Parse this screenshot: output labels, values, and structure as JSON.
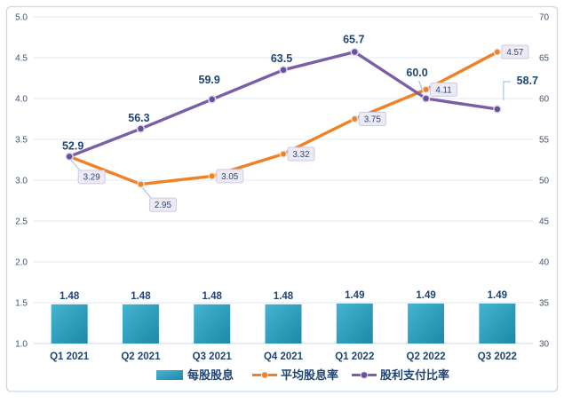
{
  "figure": {
    "background": "#ffffff",
    "border_color": "#c5d9ec"
  },
  "chart_data": {
    "type": "combo-bar-line",
    "title": "",
    "categories": [
      "Q1 2021",
      "Q2 2021",
      "Q3 2021",
      "Q4 2021",
      "Q1 2022",
      "Q2 2022",
      "Q3 2022"
    ],
    "series": [
      {
        "name": "每股股息",
        "type": "bar",
        "axis": "left",
        "color": "#2ba3c4",
        "color_light": "#46b3d1",
        "color_dark": "#1d89a9",
        "values": [
          1.48,
          1.48,
          1.48,
          1.48,
          1.49,
          1.49,
          1.49
        ],
        "labels": [
          "1.48",
          "1.48",
          "1.48",
          "1.48",
          "1.49",
          "1.49",
          "1.49"
        ],
        "label_style": "bold"
      },
      {
        "name": "平均股息率",
        "type": "line",
        "axis": "left",
        "color": "#f08124",
        "values": [
          3.29,
          2.95,
          3.05,
          3.32,
          3.75,
          4.11,
          4.57
        ],
        "labels": [
          "3.29",
          "2.95",
          "3.05",
          "3.32",
          "3.75",
          "4.11",
          "4.57"
        ],
        "label_style": "boxed",
        "label_placement": [
          "callout-below",
          "callout-below",
          "right",
          "right",
          "right",
          "right",
          "right"
        ]
      },
      {
        "name": "股利支付比率",
        "type": "line",
        "axis": "right",
        "color": "#7a5fa6",
        "marker_fill": "#6a4fa0",
        "values": [
          52.9,
          56.3,
          59.9,
          63.5,
          65.7,
          60.0,
          58.7
        ],
        "labels": [
          "52.9",
          "56.3",
          "59.9",
          "63.5",
          "65.7",
          "60.0",
          "58.7"
        ],
        "label_style": "bold",
        "label_placement": [
          "above",
          "above",
          "above",
          "above",
          "above",
          "callout-above-left",
          "callout-right"
        ]
      }
    ],
    "left_axis": {
      "min": 1.0,
      "max": 5.0,
      "step": 0.5,
      "ticks": [
        "5.0",
        "4.5",
        "4.0",
        "3.5",
        "3.0",
        "2.5",
        "2.0",
        "1.5",
        "1.0"
      ]
    },
    "right_axis": {
      "min": 30,
      "max": 70,
      "step": 5,
      "ticks": [
        "70",
        "65",
        "60",
        "55",
        "50",
        "45",
        "40",
        "35",
        "30"
      ]
    },
    "grid": true,
    "legend_position": "bottom",
    "legend": [
      "每股股息",
      "平均股息率",
      "股利支付比率"
    ],
    "style_colors": {
      "data_label_navy": "#1f4577",
      "tick_label": "#44546a",
      "boxed_label_text": "#2e4878",
      "boxed_label_bg": "#eceaf4",
      "boxed_label_border": "#cfc9e2",
      "leader_line": "#9dc3e6",
      "gridline": "#dce9f6",
      "axis_line": "#c9dbec"
    }
  }
}
